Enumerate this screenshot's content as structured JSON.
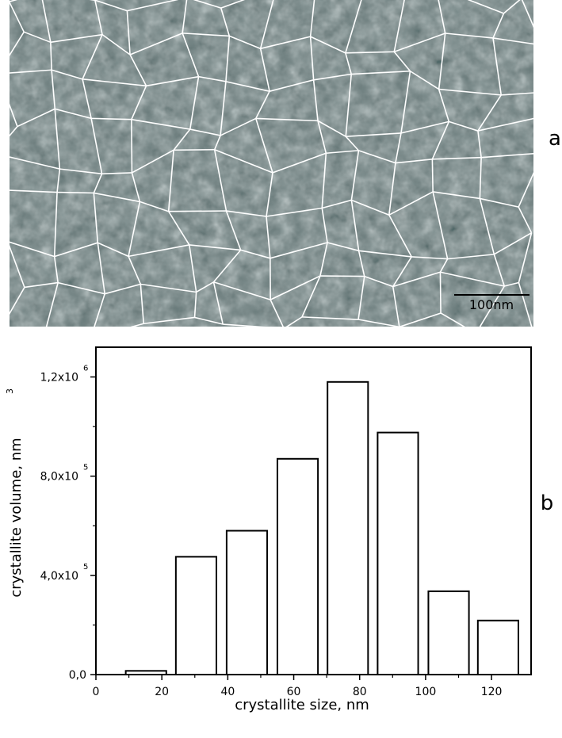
{
  "panels": {
    "a": "a",
    "b": "b"
  },
  "micrograph": {
    "scale_bar": "100nm"
  },
  "chart_data": {
    "type": "bar",
    "x_label": "crystallite size, nm",
    "y_label": "crystallite volume, nm",
    "y_label_exponent": "3",
    "x": [
      15.2,
      30.4,
      45.8,
      61.2,
      76.4,
      91.6,
      107,
      122
    ],
    "bar_width": 12.3,
    "values": [
      15000,
      475000,
      580000,
      870000,
      1180000,
      976000,
      336000,
      218000
    ],
    "color": "#ffffff",
    "xlim": [
      0,
      132
    ],
    "xticks": [
      0,
      20,
      40,
      60,
      80,
      100,
      120
    ],
    "ylim": [
      0,
      1320000
    ],
    "yticks": [
      {
        "value": 0,
        "label": "0,0"
      },
      {
        "value": 400000,
        "label": "4,0x10",
        "exponent": "5"
      },
      {
        "value": 800000,
        "label": "8,0x10",
        "exponent": "5"
      },
      {
        "value": 1200000,
        "label": "1,2x10",
        "exponent": "6"
      }
    ]
  }
}
